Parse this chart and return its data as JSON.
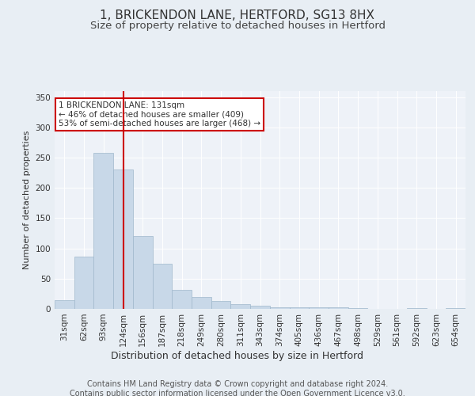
{
  "title1": "1, BRICKENDON LANE, HERTFORD, SG13 8HX",
  "title2": "Size of property relative to detached houses in Hertford",
  "xlabel": "Distribution of detached houses by size in Hertford",
  "ylabel": "Number of detached properties",
  "footer": "Contains HM Land Registry data © Crown copyright and database right 2024.\nContains public sector information licensed under the Open Government Licence v3.0.",
  "categories": [
    "31sqm",
    "62sqm",
    "93sqm",
    "124sqm",
    "156sqm",
    "187sqm",
    "218sqm",
    "249sqm",
    "280sqm",
    "311sqm",
    "343sqm",
    "374sqm",
    "405sqm",
    "436sqm",
    "467sqm",
    "498sqm",
    "529sqm",
    "561sqm",
    "592sqm",
    "623sqm",
    "654sqm"
  ],
  "values": [
    15,
    87,
    258,
    230,
    120,
    75,
    32,
    20,
    13,
    8,
    5,
    3,
    2,
    2,
    2,
    1,
    0,
    0,
    1,
    0,
    1
  ],
  "bar_color": "#c8d8e8",
  "bar_edge_color": "#a0b8cc",
  "highlight_x": "124sqm",
  "highlight_color": "#cc0000",
  "annotation_text": "1 BRICKENDON LANE: 131sqm\n← 46% of detached houses are smaller (409)\n53% of semi-detached houses are larger (468) →",
  "annotation_box_color": "#ffffff",
  "annotation_box_edge": "#cc0000",
  "ylim": [
    0,
    360
  ],
  "yticks": [
    0,
    50,
    100,
    150,
    200,
    250,
    300,
    350
  ],
  "bg_color": "#e8eef4",
  "plot_bg_color": "#eef2f8",
  "title1_fontsize": 11,
  "title2_fontsize": 9.5,
  "xlabel_fontsize": 9,
  "ylabel_fontsize": 8,
  "tick_fontsize": 7.5,
  "footer_fontsize": 7
}
